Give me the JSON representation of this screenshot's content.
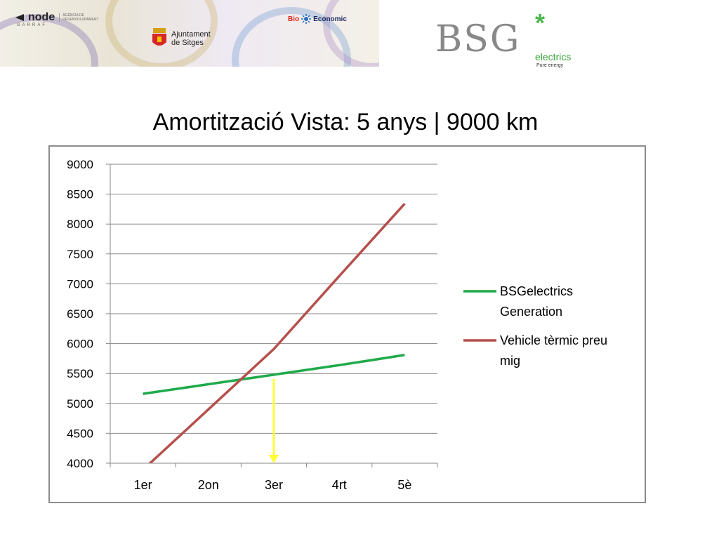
{
  "header": {
    "node_logo": {
      "word": "node",
      "sub": "GARRAF",
      "desc": "AGÈNCIA DE DESENVOLUPAMENT"
    },
    "ajuntament_logo": {
      "line1": "Ajuntament",
      "line2": "de Sitges"
    },
    "bio_logo": {
      "part1": "Bio",
      "part2": "Economic"
    },
    "bsg_logo": {
      "word": "BSG",
      "electrics": "electrics",
      "tagline": "Pure energy"
    }
  },
  "title": "Amortització Vista: 5 anys | 9000 km",
  "colors": {
    "green_series": "#1faa4b",
    "red_series": "#b5504c",
    "marker": "#ffff33",
    "grid": "#868686"
  },
  "chart_data": {
    "type": "line",
    "title": "",
    "xlabel": "",
    "ylabel": "",
    "categories": [
      "1er",
      "2on",
      "3er",
      "4rt",
      "5è"
    ],
    "ylim": [
      4000,
      9000
    ],
    "yticks": [
      4000,
      4500,
      5000,
      5500,
      6000,
      6500,
      7000,
      7500,
      8000,
      8500,
      9000
    ],
    "grid": "horizontal",
    "legend_placement": "right",
    "series": [
      {
        "name": "BSGelectrics Generation",
        "color": "#1faa4b",
        "values": [
          5160,
          5320,
          5480,
          5640,
          5810
        ]
      },
      {
        "name": "Vehicle tèrmic preu mig",
        "color": "#b5504c",
        "values": [
          3890,
          4900,
          5910,
          7130,
          8340
        ]
      }
    ],
    "annotation": {
      "type": "arrow",
      "color": "#ffff33",
      "x": 2.5,
      "from_y": 5410,
      "to_y": 4000
    }
  }
}
